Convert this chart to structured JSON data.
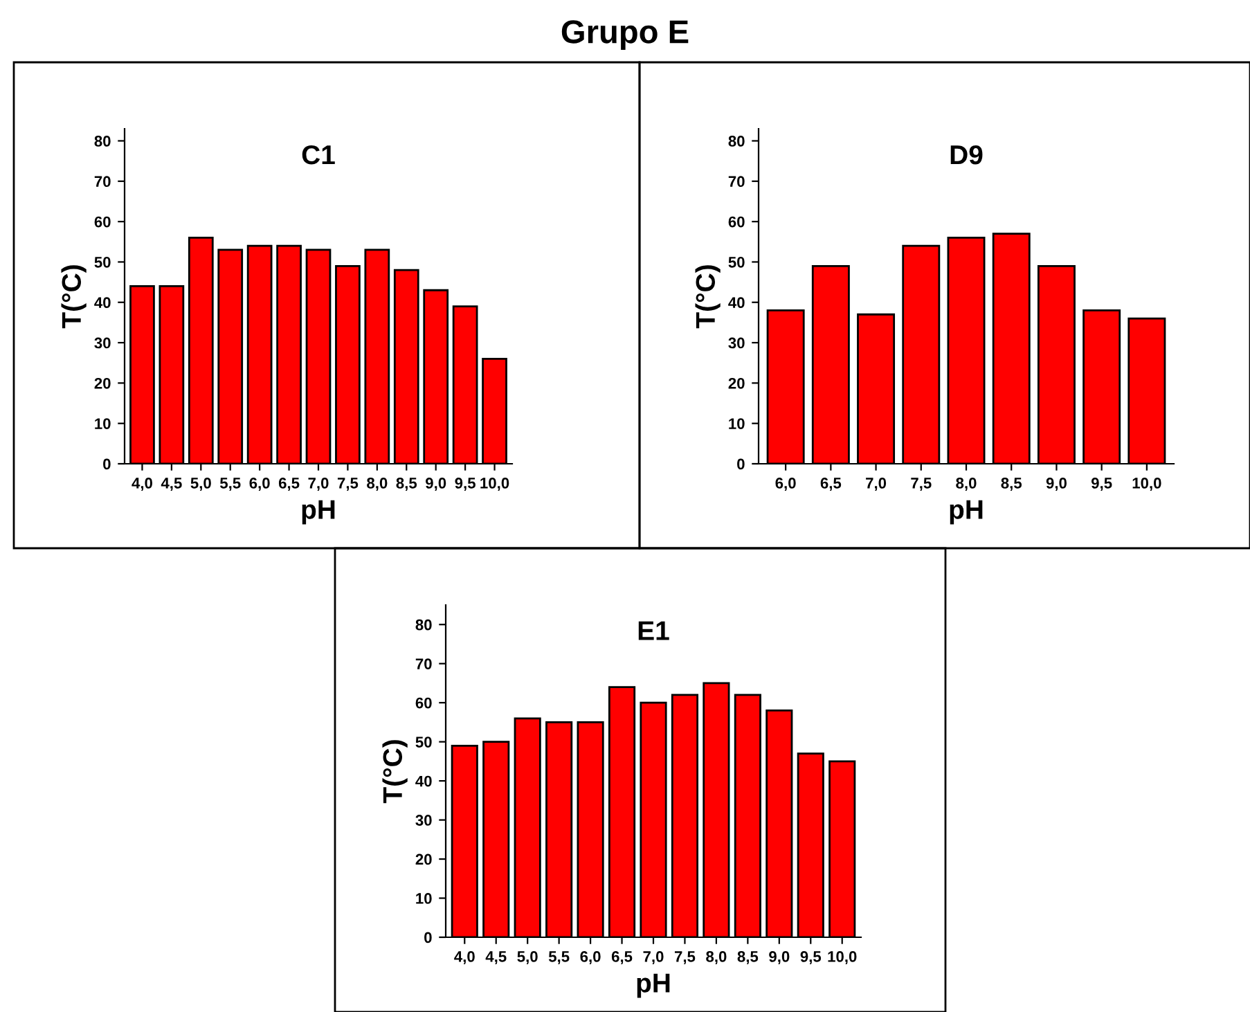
{
  "chart_data": [
    {
      "type": "bar",
      "title": "C1",
      "xlabel": "pH",
      "ylabel": "T(°C)",
      "annotations": [
        "Grupo E"
      ],
      "categories": [
        "4,0",
        "4,5",
        "5,0",
        "5,5",
        "6,0",
        "6,5",
        "7,0",
        "7,5",
        "8,0",
        "8,5",
        "9,0",
        "9,5",
        "10,0"
      ],
      "values": [
        44,
        44,
        56,
        53,
        54,
        54,
        53,
        49,
        53,
        48,
        43,
        39,
        26
      ],
      "color": "#ff0000",
      "ylim": [
        0,
        83
      ],
      "yticks": [
        0,
        10,
        20,
        30,
        40,
        50,
        60,
        70,
        80
      ],
      "grid": false,
      "legend": false
    },
    {
      "type": "bar",
      "title": "D9",
      "xlabel": "pH",
      "ylabel": "T(°C)",
      "categories": [
        "6,0",
        "6,5",
        "7,0",
        "7,5",
        "8,0",
        "8,5",
        "9,0",
        "9,5",
        "10,0"
      ],
      "values": [
        38,
        49,
        37,
        54,
        56,
        57,
        49,
        38,
        36
      ],
      "color": "#ff0000",
      "ylim": [
        0,
        83
      ],
      "yticks": [
        0,
        10,
        20,
        30,
        40,
        50,
        60,
        70,
        80
      ],
      "grid": false,
      "legend": false
    },
    {
      "type": "bar",
      "title": "E1",
      "xlabel": "pH",
      "ylabel": "T(°C)",
      "categories": [
        "4,0",
        "4,5",
        "5,0",
        "5,5",
        "6,0",
        "6,5",
        "7,0",
        "7,5",
        "8,0",
        "8,5",
        "9,0",
        "9,5",
        "10,0"
      ],
      "values": [
        49,
        50,
        56,
        55,
        55,
        64,
        60,
        62,
        65,
        62,
        58,
        47,
        45
      ],
      "color": "#ff0000",
      "ylim": [
        0,
        85
      ],
      "yticks": [
        0,
        10,
        20,
        30,
        40,
        50,
        60,
        70,
        80
      ],
      "grid": false,
      "legend": false
    }
  ]
}
